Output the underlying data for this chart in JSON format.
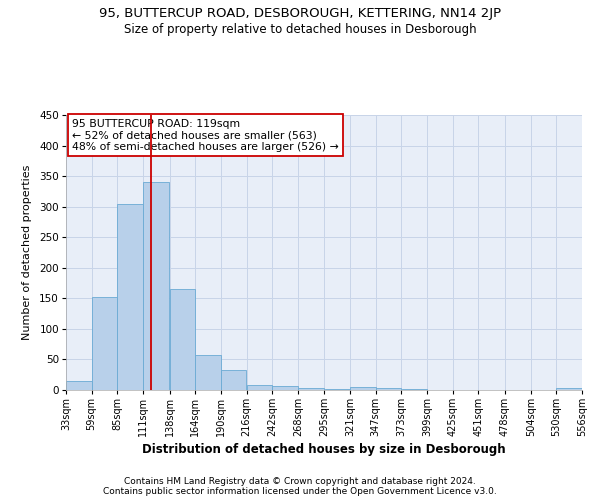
{
  "title1": "95, BUTTERCUP ROAD, DESBOROUGH, KETTERING, NN14 2JP",
  "title2": "Size of property relative to detached houses in Desborough",
  "xlabel": "Distribution of detached houses by size in Desborough",
  "ylabel": "Number of detached properties",
  "footer1": "Contains HM Land Registry data © Crown copyright and database right 2024.",
  "footer2": "Contains public sector information licensed under the Open Government Licence v3.0.",
  "bar_left_edges": [
    33,
    59,
    85,
    111,
    138,
    164,
    190,
    216,
    242,
    268,
    295,
    321,
    347,
    373,
    399,
    425,
    451,
    478,
    504,
    530
  ],
  "bar_widths": [
    26,
    26,
    26,
    27,
    26,
    26,
    26,
    26,
    26,
    27,
    26,
    26,
    26,
    26,
    26,
    26,
    27,
    26,
    26,
    26
  ],
  "bar_heights": [
    15,
    152,
    305,
    340,
    165,
    57,
    33,
    9,
    6,
    4,
    2,
    5,
    4,
    2,
    0,
    0,
    0,
    0,
    0,
    4
  ],
  "bar_color": "#b8d0ea",
  "bar_edge_color": "#6aaad4",
  "grid_color": "#c8d4e8",
  "bg_color": "#e8eef8",
  "red_line_x": 119,
  "red_line_color": "#cc0000",
  "annotation_line1": "95 BUTTERCUP ROAD: 119sqm",
  "annotation_line2": "← 52% of detached houses are smaller (563)",
  "annotation_line3": "48% of semi-detached houses are larger (526) →",
  "annotation_box_color": "#ffffff",
  "annotation_border_color": "#cc0000",
  "ylim": [
    0,
    450
  ],
  "yticks": [
    0,
    50,
    100,
    150,
    200,
    250,
    300,
    350,
    400,
    450
  ],
  "xtick_labels": [
    "33sqm",
    "59sqm",
    "85sqm",
    "111sqm",
    "138sqm",
    "164sqm",
    "190sqm",
    "216sqm",
    "242sqm",
    "268sqm",
    "295sqm",
    "321sqm",
    "347sqm",
    "373sqm",
    "399sqm",
    "425sqm",
    "451sqm",
    "478sqm",
    "504sqm",
    "530sqm",
    "556sqm"
  ],
  "title1_fontsize": 9.5,
  "title2_fontsize": 8.5,
  "xlabel_fontsize": 8.5,
  "ylabel_fontsize": 8,
  "annotation_fontsize": 7.8,
  "tick_fontsize": 7,
  "ytick_fontsize": 7.5,
  "footer_fontsize": 6.5
}
